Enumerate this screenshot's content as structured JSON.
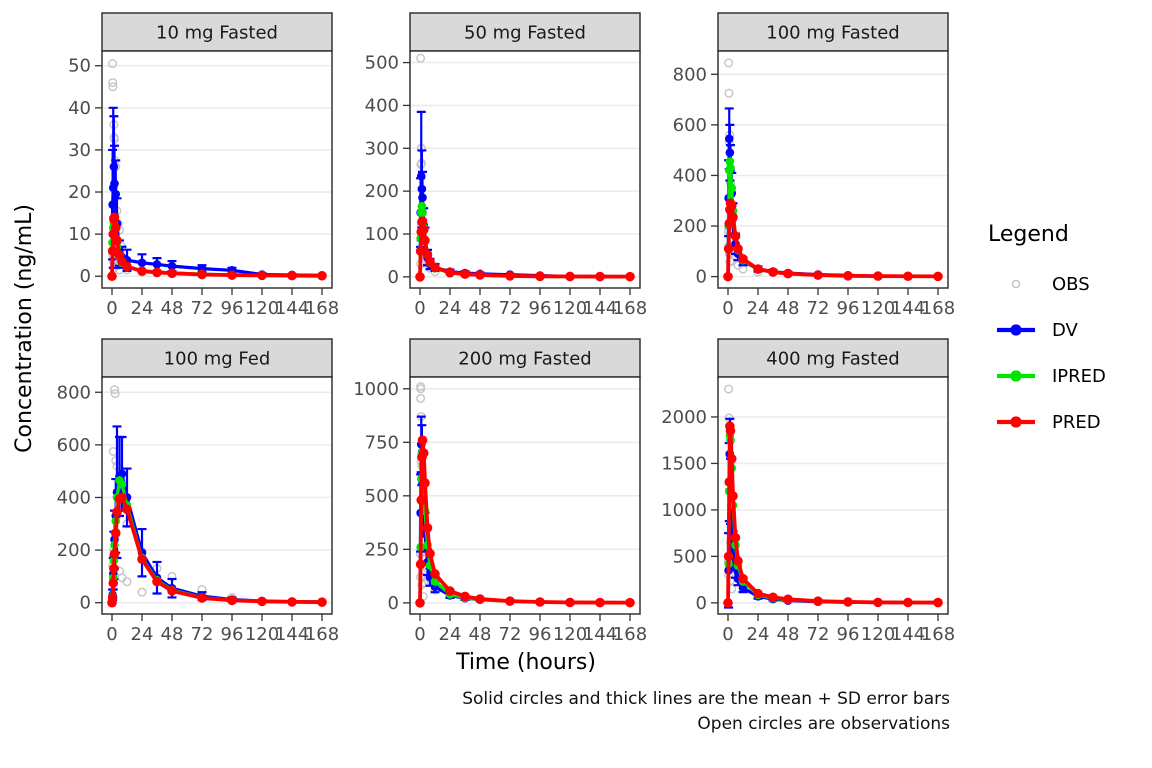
{
  "style": {
    "background": "#ffffff",
    "strip_bg": "#d9d9d9",
    "panel_bg": "#ffffff",
    "panel_border": "#333333",
    "gridline": "#ebebeb",
    "tick_color": "#333333",
    "axis_text_color": "#4d4d4d",
    "strip_text_color": "#1a1a1a"
  },
  "chart_data": {
    "type": "line",
    "xlabel": "Time (hours)",
    "ylabel": "Concentration (ng/mL)",
    "x_ticks": [
      0,
      24,
      48,
      72,
      96,
      120,
      144,
      168
    ],
    "xlim": [
      -8,
      176
    ],
    "grid": "horizontal-major-only",
    "legend": {
      "title": "Legend",
      "position": "right",
      "entries": [
        {
          "label": "OBS",
          "marker": "open-circle",
          "color": "#c4c4c4"
        },
        {
          "label": "DV",
          "marker": "line-filled-circle",
          "color": "#0000ff"
        },
        {
          "label": "IPRED",
          "marker": "line-filled-circle",
          "color": "#00e600"
        },
        {
          "label": "PRED",
          "marker": "line-filled-circle",
          "color": "#ff0000"
        }
      ]
    },
    "caption": [
      "Solid circles and thick lines are the mean + SD error bars",
      "Open circles are observations"
    ],
    "time": [
      0,
      0.5,
      1,
      1.5,
      2,
      3,
      4,
      6,
      8,
      12,
      24,
      36,
      48,
      72,
      96,
      120,
      144,
      168
    ],
    "facets": [
      {
        "title": "10 mg Fasted",
        "yticks": [
          0,
          10,
          20,
          30,
          40,
          50
        ],
        "ylim": [
          -2.8,
          53.5
        ],
        "dv_mean": [
          0,
          17,
          21,
          26,
          22,
          19.5,
          12.5,
          5.5,
          4.5,
          3.8,
          3.2,
          2.8,
          2.4,
          1.8,
          1.4,
          0.4,
          0.3,
          0.2
        ],
        "dv_sd": [
          0,
          13,
          19,
          12,
          9,
          8,
          6,
          3,
          2.5,
          2.5,
          2,
          1.5,
          1.2,
          0.8,
          0.6,
          0.3,
          0.2,
          0.1
        ],
        "ipred": [
          0,
          8,
          11.5,
          12.5,
          11.5,
          9,
          7,
          4.5,
          3.2,
          2.2,
          1.3,
          1,
          0.8,
          0.5,
          0.3,
          0.2,
          0.15,
          0.1
        ],
        "pred": [
          0,
          6,
          10,
          13.5,
          14,
          11.5,
          8.5,
          5,
          3.5,
          2.3,
          1.2,
          0.9,
          0.7,
          0.4,
          0.25,
          0.2,
          0.15,
          0.1
        ],
        "obs": [
          [
            0.5,
            50.5
          ],
          [
            0.6,
            46
          ],
          [
            0.75,
            45
          ],
          [
            1.5,
            36
          ],
          [
            1.7,
            33
          ],
          [
            2,
            32.5
          ],
          [
            2.5,
            27.5
          ],
          [
            3,
            26
          ],
          [
            4,
            15.5
          ],
          [
            5,
            12.5
          ],
          [
            6,
            11
          ],
          [
            8,
            7
          ],
          [
            0.4,
            8
          ],
          [
            0.6,
            5
          ],
          [
            1,
            3.5
          ],
          [
            1.5,
            2
          ],
          [
            3,
            4
          ],
          [
            4,
            2.5
          ],
          [
            6,
            1.5
          ],
          [
            12,
            1.5
          ],
          [
            24,
            1
          ],
          [
            48,
            0.6
          ]
        ]
      },
      {
        "title": "50 mg Fasted",
        "yticks": [
          0,
          100,
          200,
          300,
          400,
          500
        ],
        "ylim": [
          -26,
          527
        ],
        "dv_mean": [
          0,
          150,
          235,
          205,
          185,
          120,
          85,
          45,
          30,
          22,
          12,
          9,
          7,
          5,
          3,
          1,
          0.8,
          0.6
        ],
        "dv_sd": [
          0,
          80,
          150,
          90,
          60,
          40,
          30,
          18,
          12,
          8,
          5,
          4,
          3,
          2,
          1.5,
          0.8,
          0.6,
          0.5
        ],
        "ipred": [
          0,
          90,
          150,
          165,
          150,
          115,
          85,
          50,
          33,
          20,
          9,
          6,
          4,
          2,
          1.2,
          0.8,
          0.6,
          0.5
        ],
        "pred": [
          0,
          60,
          105,
          128,
          130,
          110,
          85,
          52,
          35,
          22,
          10,
          6.5,
          4.5,
          2.2,
          1.3,
          0.9,
          0.7,
          0.5
        ],
        "obs": [
          [
            0.5,
            510
          ],
          [
            1,
            300
          ],
          [
            1.2,
            265
          ],
          [
            0.75,
            262
          ],
          [
            1.5,
            205
          ],
          [
            2,
            150
          ],
          [
            2.5,
            95
          ],
          [
            3,
            70
          ],
          [
            4,
            45
          ],
          [
            6,
            30
          ],
          [
            0.3,
            60
          ],
          [
            0.5,
            30
          ],
          [
            1,
            120
          ],
          [
            1.5,
            90
          ],
          [
            2,
            55
          ],
          [
            8,
            20
          ],
          [
            12,
            12
          ],
          [
            24,
            8
          ],
          [
            3,
            35
          ],
          [
            48,
            5
          ]
        ]
      },
      {
        "title": "100 mg Fasted",
        "yticks": [
          0,
          200,
          400,
          600,
          800
        ],
        "ylim": [
          -45,
          892
        ],
        "dv_mean": [
          0,
          310,
          545,
          490,
          420,
          330,
          230,
          130,
          90,
          60,
          30,
          20,
          14,
          8,
          5,
          2,
          1.5,
          1
        ],
        "dv_sd": [
          0,
          150,
          120,
          110,
          100,
          80,
          60,
          40,
          25,
          15,
          10,
          7,
          5,
          3,
          2,
          1,
          0.8,
          0.6
        ],
        "ipred": [
          0,
          200,
          420,
          455,
          430,
          350,
          260,
          160,
          105,
          65,
          28,
          17,
          11,
          6,
          3,
          2,
          1.5,
          1
        ],
        "pred": [
          0,
          110,
          210,
          265,
          290,
          280,
          235,
          160,
          110,
          70,
          30,
          18,
          12,
          6,
          3,
          2,
          1.5,
          1
        ],
        "obs": [
          [
            0.5,
            845
          ],
          [
            0.75,
            725
          ],
          [
            1.5,
            560
          ],
          [
            1,
            530
          ],
          [
            2,
            370
          ],
          [
            2.5,
            250
          ],
          [
            3,
            210
          ],
          [
            0.3,
            180
          ],
          [
            0.5,
            120
          ],
          [
            1,
            90
          ],
          [
            1.5,
            60
          ],
          [
            4,
            120
          ],
          [
            6,
            80
          ],
          [
            2,
            95
          ],
          [
            8,
            45
          ],
          [
            12,
            30
          ],
          [
            24,
            18
          ],
          [
            2.5,
            140
          ],
          [
            48,
            10
          ],
          [
            3,
            60
          ]
        ]
      },
      {
        "title": "100 mg Fed",
        "yticks": [
          0,
          200,
          400,
          600,
          800
        ],
        "ylim": [
          -43,
          858
        ],
        "dv_mean": [
          0,
          30,
          110,
          180,
          240,
          330,
          420,
          480,
          490,
          400,
          190,
          95,
          55,
          25,
          12,
          6,
          4,
          3
        ],
        "dv_sd": [
          0,
          20,
          60,
          90,
          110,
          140,
          250,
          150,
          140,
          110,
          90,
          60,
          35,
          15,
          8,
          4,
          3,
          2
        ],
        "ipred": [
          0,
          25,
          95,
          160,
          220,
          310,
          400,
          465,
          450,
          370,
          170,
          85,
          48,
          20,
          10,
          5,
          3,
          2
        ],
        "pred": [
          0,
          20,
          75,
          130,
          185,
          265,
          345,
          395,
          400,
          355,
          165,
          80,
          45,
          18,
          9,
          5,
          3,
          2
        ],
        "obs": [
          [
            2,
            810
          ],
          [
            2.5,
            795
          ],
          [
            1,
            575
          ],
          [
            3,
            540
          ],
          [
            4,
            520
          ],
          [
            6,
            440
          ],
          [
            8,
            420
          ],
          [
            12,
            300
          ],
          [
            1.5,
            200
          ],
          [
            0.5,
            140
          ],
          [
            24,
            195
          ],
          [
            36,
            130
          ],
          [
            2,
            190
          ],
          [
            3,
            260
          ],
          [
            48,
            100
          ],
          [
            6,
            120
          ],
          [
            8,
            95
          ],
          [
            72,
            50
          ],
          [
            96,
            20
          ],
          [
            4,
            330
          ],
          [
            12,
            80
          ],
          [
            24,
            40
          ]
        ]
      },
      {
        "title": "200 mg Fasted",
        "yticks": [
          0,
          250,
          500,
          750,
          1000
        ],
        "ylim": [
          -52,
          1055
        ],
        "dv_mean": [
          0,
          420,
          740,
          690,
          560,
          430,
          330,
          190,
          120,
          75,
          35,
          22,
          15,
          8,
          5,
          2,
          1.5,
          1
        ],
        "dv_sd": [
          0,
          180,
          130,
          140,
          150,
          120,
          90,
          60,
          40,
          25,
          12,
          8,
          6,
          3,
          2,
          1,
          1,
          0.8
        ],
        "ipred": [
          0,
          260,
          580,
          700,
          680,
          560,
          430,
          270,
          175,
          100,
          40,
          24,
          15,
          7,
          4,
          2,
          1.5,
          1
        ],
        "pred": [
          0,
          180,
          480,
          680,
          760,
          700,
          560,
          350,
          230,
          135,
          55,
          30,
          18,
          8,
          4,
          2,
          1.5,
          1
        ],
        "obs": [
          [
            0.5,
            1010
          ],
          [
            0.6,
            1000
          ],
          [
            0.5,
            955
          ],
          [
            1,
            870
          ],
          [
            1,
            660
          ],
          [
            1.5,
            640
          ],
          [
            2,
            470
          ],
          [
            3,
            340
          ],
          [
            0.3,
            230
          ],
          [
            0.5,
            120
          ],
          [
            2,
            120
          ],
          [
            3,
            95
          ],
          [
            4,
            240
          ],
          [
            6,
            160
          ],
          [
            8,
            110
          ],
          [
            1.5,
            85
          ],
          [
            12,
            60
          ],
          [
            24,
            35
          ],
          [
            2.5,
            30
          ],
          [
            48,
            15
          ]
        ]
      },
      {
        "title": "400 mg Fasted",
        "yticks": [
          0,
          500,
          1000,
          1500,
          2000
        ],
        "ylim": [
          -120,
          2430
        ],
        "dv_mean": [
          0,
          350,
          1300,
          1600,
          1200,
          800,
          600,
          380,
          260,
          160,
          70,
          40,
          25,
          12,
          6,
          4,
          3,
          2
        ],
        "dv_sd": [
          0,
          400,
          420,
          380,
          350,
          250,
          170,
          110,
          70,
          45,
          25,
          15,
          10,
          5,
          3,
          2,
          2,
          1.5
        ],
        "ipred": [
          0,
          420,
          1200,
          1800,
          1750,
          1450,
          1050,
          620,
          400,
          230,
          85,
          50,
          32,
          15,
          8,
          5,
          4,
          3
        ],
        "pred": [
          0,
          500,
          1300,
          1900,
          1850,
          1550,
          1150,
          700,
          450,
          260,
          100,
          60,
          38,
          18,
          10,
          5,
          4,
          3
        ],
        "obs": [
          [
            0.5,
            2300
          ],
          [
            0.75,
            1990
          ],
          [
            1,
            1600
          ],
          [
            3,
            630
          ],
          [
            2,
            650
          ],
          [
            2.5,
            620
          ],
          [
            1.5,
            500
          ],
          [
            0.3,
            450
          ],
          [
            0.5,
            300
          ],
          [
            4,
            500
          ],
          [
            6,
            380
          ],
          [
            8,
            300
          ],
          [
            2,
            240
          ],
          [
            12,
            200
          ],
          [
            24,
            90
          ],
          [
            3,
            150
          ],
          [
            36,
            60
          ],
          [
            48,
            40
          ],
          [
            72,
            20
          ],
          [
            96,
            10
          ]
        ]
      }
    ]
  }
}
